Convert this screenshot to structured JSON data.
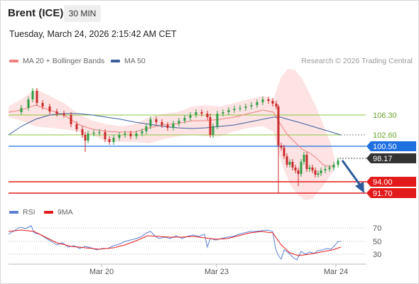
{
  "header": {
    "title": "Brent (ICE)",
    "timeframe": "30 MIN"
  },
  "datetime": "Tuesday, March 24, 2026 2:15:42 AM CET",
  "legend": {
    "ma20_label": "MA 20 + Bollinger Bands",
    "ma50_label": "MA 50",
    "credit": "Research © 2026 Trading Central",
    "rsi_label": "RSI",
    "rsi_ma_label": "9MA"
  },
  "levels": {
    "r2": "106.30",
    "r1": "102.60",
    "pivot": "100.50",
    "last": "98.17",
    "s1": "94.00",
    "s2": "91.70"
  },
  "rsi_axis": [
    "70",
    "50",
    "30"
  ],
  "x_axis": [
    "Mar 20",
    "Mar 23",
    "Mar 24"
  ],
  "colors": {
    "resistance": "#8dc73f",
    "pivot": "#1e6fe0",
    "support": "#e31a1c",
    "candle_up": "#2f9e44",
    "candle_down": "#c92a2a",
    "ma20": "#f08080",
    "ma50": "#3a5f9e",
    "band": "#fde2e2",
    "arrow": "#2f5b9a"
  }
}
